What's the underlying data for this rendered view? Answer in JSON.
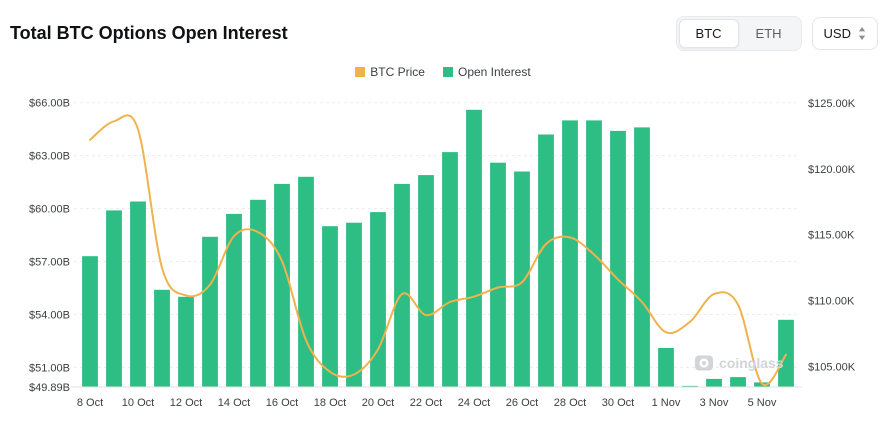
{
  "header": {
    "title": "Total BTC Options Open Interest",
    "coin_toggle": {
      "options": [
        "BTC",
        "ETH"
      ],
      "selected": "BTC"
    },
    "currency_selector": {
      "value": "USD"
    }
  },
  "legend": [
    {
      "label": "BTC Price",
      "color": "#EFB34E"
    },
    {
      "label": "Open Interest",
      "color": "#2EBD85"
    }
  ],
  "watermark": {
    "text": "coinglass"
  },
  "chart_data": {
    "type": "bar+line",
    "title": "Total BTC Options Open Interest",
    "categories": [
      "8 Oct",
      "9 Oct",
      "10 Oct",
      "11 Oct",
      "12 Oct",
      "13 Oct",
      "14 Oct",
      "15 Oct",
      "16 Oct",
      "17 Oct",
      "18 Oct",
      "19 Oct",
      "20 Oct",
      "21 Oct",
      "22 Oct",
      "23 Oct",
      "24 Oct",
      "25 Oct",
      "26 Oct",
      "27 Oct",
      "28 Oct",
      "29 Oct",
      "30 Oct",
      "31 Oct",
      "1 Nov",
      "2 Nov",
      "3 Nov",
      "4 Nov",
      "5 Nov",
      "6 Nov"
    ],
    "x_label_every": 2,
    "series": [
      {
        "name": "Open Interest",
        "type": "bar",
        "axis": "left",
        "unit": "USD billions",
        "color": "#2EBD85",
        "values": [
          57.3,
          59.9,
          60.4,
          55.4,
          55.0,
          58.4,
          59.7,
          60.5,
          61.4,
          61.8,
          59.0,
          59.2,
          59.8,
          61.4,
          61.9,
          63.2,
          65.6,
          62.6,
          62.1,
          64.2,
          65.0,
          65.0,
          64.4,
          64.6,
          52.1,
          49.95,
          50.35,
          50.45,
          50.15,
          53.7
        ]
      },
      {
        "name": "BTC Price",
        "type": "line",
        "axis": "right",
        "unit": "USD thousands",
        "color": "#EFB34E",
        "values": [
          122.2,
          123.6,
          123.0,
          112.5,
          110.4,
          111.2,
          114.9,
          115.2,
          113.0,
          107.0,
          104.6,
          104.4,
          106.3,
          110.5,
          108.9,
          109.9,
          110.3,
          111.0,
          111.4,
          114.3,
          114.8,
          113.5,
          111.6,
          109.9,
          107.6,
          108.4,
          110.5,
          109.7,
          103.7,
          105.9
        ]
      }
    ],
    "left_axis": {
      "min": 49.89,
      "max": 66.55,
      "tick_values": [
        66,
        63,
        60,
        57,
        54,
        51,
        49.89
      ],
      "tick_labels": [
        "$66.00B",
        "$63.00B",
        "$60.00B",
        "$57.00B",
        "$54.00B",
        "$51.00B",
        "$49.89B"
      ]
    },
    "right_axis": {
      "min": 103.45,
      "max": 125.75,
      "tick_values": [
        125,
        120,
        115,
        110,
        105
      ],
      "tick_labels": [
        "$125.00K",
        "$120.00K",
        "$115.00K",
        "$110.00K",
        "$105.00K"
      ]
    },
    "grid": "horizontal-dashed",
    "legend_position": "top-center"
  }
}
